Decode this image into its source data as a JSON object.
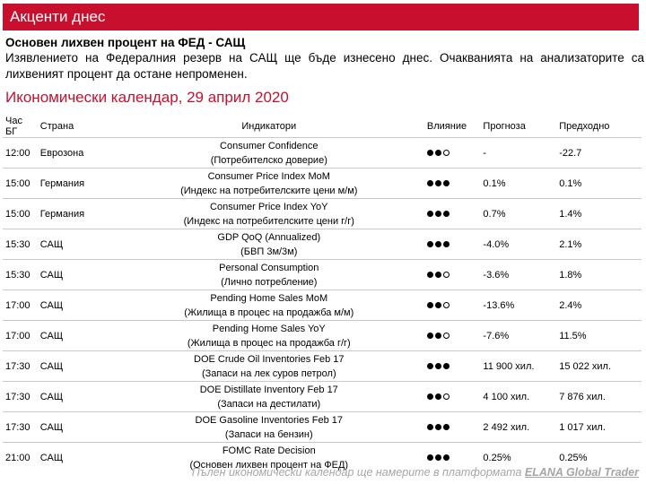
{
  "banner": {
    "title": "Акценти днес"
  },
  "news": {
    "headline": "Основен лихвен процент на ФЕД - САЩ",
    "body": "Изявлението на Федералния резерв на САЩ ще бъде изнесено днес. Очакванията на анализаторите са лихвеният процент да остане непроменен."
  },
  "calendar": {
    "title": "Икономически календар, 29 април 2020",
    "headers": {
      "time": "Час БГ",
      "country": "Страна",
      "indicators": "Индикатори",
      "impact": "Влияние",
      "forecast": "Прогноза",
      "previous": "Предходно"
    },
    "rows": [
      {
        "time": "12:00",
        "country": "Еврозона",
        "indicator_en": "Consumer Confidence",
        "indicator_bg": "(Потребителско доверие)",
        "impact": 2,
        "forecast": "-",
        "previous": "-22.7"
      },
      {
        "time": "15:00",
        "country": "Германия",
        "indicator_en": "Consumer Price Index MoM",
        "indicator_bg": "(Индекс на потребителските цени м/м)",
        "impact": 3,
        "forecast": "0.1%",
        "previous": "0.1%"
      },
      {
        "time": "15:00",
        "country": "Германия",
        "indicator_en": "Consumer Price Index YoY",
        "indicator_bg": "(Индекс на потребителските цени г/г)",
        "impact": 3,
        "forecast": "0.7%",
        "previous": "1.4%"
      },
      {
        "time": "15:30",
        "country": "САЩ",
        "indicator_en": "GDP QoQ (Annualized)",
        "indicator_bg": "(БВП 3м/3м)",
        "impact": 3,
        "forecast": "-4.0%",
        "previous": "2.1%"
      },
      {
        "time": "15:30",
        "country": "САЩ",
        "indicator_en": "Personal Consumption",
        "indicator_bg": "(Лично потребление)",
        "impact": 2,
        "forecast": "-3.6%",
        "previous": "1.8%"
      },
      {
        "time": "17:00",
        "country": "САЩ",
        "indicator_en": "Pending Home Sales MoM",
        "indicator_bg": "(Жилища в процес на продажба м/м)",
        "impact": 2,
        "forecast": "-13.6%",
        "previous": "2.4%"
      },
      {
        "time": "17:00",
        "country": "САЩ",
        "indicator_en": "Pending Home Sales YoY",
        "indicator_bg": "(Жилища в процес на продажба г/г)",
        "impact": 2,
        "forecast": "-7.6%",
        "previous": "11.5%"
      },
      {
        "time": "17:30",
        "country": "САЩ",
        "indicator_en": "DOE Crude Oil Inventories Feb 17",
        "indicator_bg": "(Запаси на лек суров петрол)",
        "impact": 3,
        "forecast": "11 900 хил.",
        "previous": "15 022 хил."
      },
      {
        "time": "17:30",
        "country": "САЩ",
        "indicator_en": "DOE Distillate Inventory Feb 17",
        "indicator_bg": "(Запаси на дестилати)",
        "impact": 2,
        "forecast": "4 100 хил.",
        "previous": "7 876 хил."
      },
      {
        "time": "17:30",
        "country": "САЩ",
        "indicator_en": "DOE Gasoline Inventories Feb 17",
        "indicator_bg": "(Запаси на бензин)",
        "impact": 3,
        "forecast": "2 492 хил.",
        "previous": "1 017 хил."
      },
      {
        "time": "21:00",
        "country": "САЩ",
        "indicator_en": "FOMC Rate Decision",
        "indicator_bg": "(Основен лихвен процент на ФЕД)",
        "impact": 3,
        "forecast": "0.25%",
        "previous": "0.25%"
      }
    ]
  },
  "footer": {
    "text": "Пълен икономически календар ще намерите в платформата ",
    "link": "ELANA Global Trader"
  },
  "colors": {
    "accent": "#c8102e",
    "footer_text": "#a6a6a6",
    "row_border": "#c9c9c9"
  }
}
